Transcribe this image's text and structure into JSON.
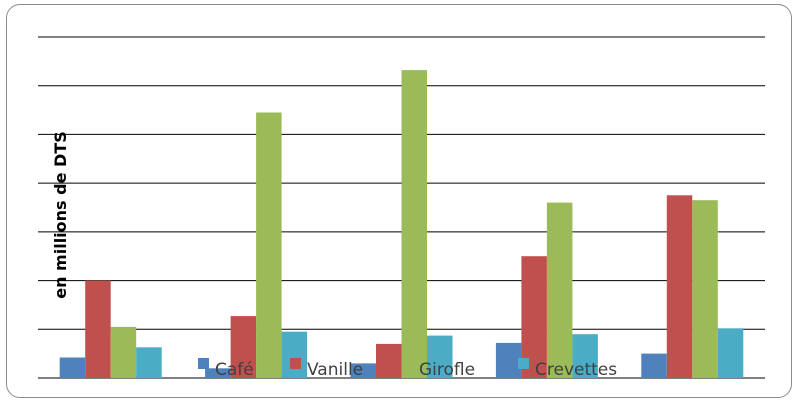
{
  "chart_data": {
    "type": "bar",
    "title": "",
    "xlabel": "",
    "ylabel": "en millions de DTS",
    "categories": [
      "",
      "",
      "",
      "",
      ""
    ],
    "ylim": [
      0,
      7
    ],
    "grid": true,
    "legend_position": "bottom-center",
    "series": [
      {
        "name": "Café",
        "color": "#4f81bd",
        "values": [
          0.42,
          0.2,
          0.3,
          0.72,
          0.5
        ]
      },
      {
        "name": "Vanille",
        "color": "#c0504d",
        "values": [
          2.0,
          1.27,
          0.7,
          2.5,
          3.75
        ]
      },
      {
        "name": "Girofle",
        "color": "#9bbb59",
        "values": [
          1.05,
          5.45,
          6.32,
          3.6,
          3.65
        ]
      },
      {
        "name": "Crevettes",
        "color": "#4bacc6",
        "values": [
          0.63,
          0.95,
          0.87,
          0.9,
          1.02
        ]
      }
    ]
  }
}
